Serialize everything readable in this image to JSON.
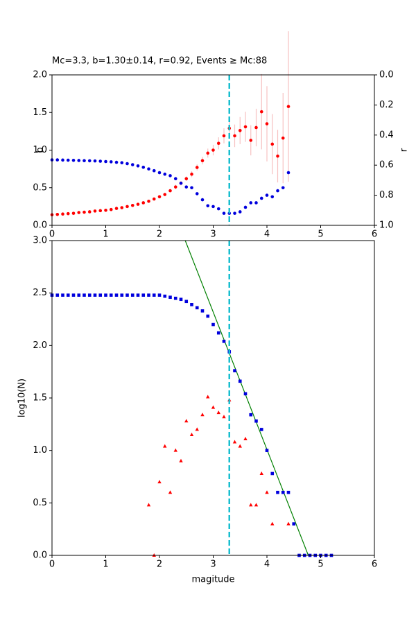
{
  "chart_data": [
    {
      "type": "scatter",
      "title": "Mc=3.3, b=1.30±0.14, r=0.92, Events ≥ Mc:88",
      "ylabel": "b",
      "y2label": "r",
      "xlim": [
        0,
        6
      ],
      "xticks": [
        0,
        1,
        2,
        3,
        4,
        5,
        6
      ],
      "ylim": [
        0,
        2
      ],
      "yticks": [
        {
          "value": 0,
          "label": "0.0"
        },
        {
          "value": 0.5,
          "label": "0.5"
        },
        {
          "value": 1,
          "label": "1.0"
        },
        {
          "value": 1.5,
          "label": "1.5"
        },
        {
          "value": 2,
          "label": "2.0"
        }
      ],
      "y2lim": [
        1,
        0
      ],
      "y2ticks": [
        {
          "value": 0,
          "label": "0.0"
        },
        {
          "value": 0.2,
          "label": "0.2"
        },
        {
          "value": 0.4,
          "label": "0.4"
        },
        {
          "value": 0.6,
          "label": "0.6"
        },
        {
          "value": 0.8,
          "label": "0.8"
        },
        {
          "value": 1,
          "label": "1.0"
        }
      ],
      "vline": {
        "value": 3.3,
        "color": "#17becf"
      },
      "x": [
        0,
        0.1,
        0.2,
        0.3,
        0.4,
        0.5,
        0.6,
        0.7,
        0.8,
        0.9,
        1.0,
        1.1,
        1.2,
        1.3,
        1.4,
        1.5,
        1.6,
        1.7,
        1.8,
        1.9,
        2.0,
        2.1,
        2.2,
        2.3,
        2.4,
        2.5,
        2.6,
        2.7,
        2.8,
        2.9,
        3.0,
        3.1,
        3.2,
        3.3,
        3.4,
        3.5,
        3.6,
        3.7,
        3.8,
        3.9,
        4.0,
        4.1,
        4.2,
        4.3,
        4.4
      ],
      "series": [
        {
          "color": "#ff0000",
          "marker": "circle",
          "error_color": "#f7c0c0",
          "values": [
            0.14,
            0.145,
            0.15,
            0.155,
            0.16,
            0.17,
            0.175,
            0.18,
            0.19,
            0.195,
            0.2,
            0.21,
            0.225,
            0.235,
            0.25,
            0.265,
            0.28,
            0.3,
            0.32,
            0.35,
            0.38,
            0.41,
            0.46,
            0.51,
            0.56,
            0.62,
            0.68,
            0.77,
            0.86,
            0.96,
            1.0,
            1.09,
            1.19,
            1.29,
            1.19,
            1.26,
            1.31,
            1.13,
            1.3,
            1.51,
            1.35,
            1.08,
            0.92,
            1.16,
            1.58
          ],
          "errors": [
            0.01,
            0.01,
            0.01,
            0.01,
            0.01,
            0.01,
            0.01,
            0.01,
            0.01,
            0.01,
            0.01,
            0.01,
            0.01,
            0.01,
            0.01,
            0.01,
            0.01,
            0.01,
            0.01,
            0.01,
            0.02,
            0.02,
            0.02,
            0.03,
            0.03,
            0.03,
            0.04,
            0.04,
            0.05,
            0.06,
            0.07,
            0.08,
            0.1,
            0.14,
            0.15,
            0.18,
            0.2,
            0.2,
            0.25,
            0.5,
            0.5,
            0.4,
            0.35,
            0.6,
            1.0
          ]
        },
        {
          "color": "#0000dd",
          "marker": "circle",
          "axis": "y2",
          "values": [
            0.565,
            0.565,
            0.566,
            0.567,
            0.568,
            0.569,
            0.57,
            0.571,
            0.572,
            0.574,
            0.576,
            0.578,
            0.581,
            0.584,
            0.59,
            0.597,
            0.605,
            0.614,
            0.625,
            0.637,
            0.65,
            0.66,
            0.67,
            0.69,
            0.72,
            0.745,
            0.75,
            0.79,
            0.83,
            0.87,
            0.875,
            0.89,
            0.92,
            0.92,
            0.92,
            0.91,
            0.88,
            0.85,
            0.85,
            0.82,
            0.8,
            0.81,
            0.77,
            0.75,
            0.65
          ]
        }
      ]
    },
    {
      "type": "scatter",
      "xlabel": "magitude",
      "ylabel": "log10(N)",
      "xlim": [
        0,
        6
      ],
      "xticks": [
        0,
        1,
        2,
        3,
        4,
        5,
        6
      ],
      "ylim": [
        0,
        3
      ],
      "yticks": [
        {
          "value": 0,
          "label": "0.0"
        },
        {
          "value": 0.5,
          "label": "0.5"
        },
        {
          "value": 1,
          "label": "1.0"
        },
        {
          "value": 1.5,
          "label": "1.5"
        },
        {
          "value": 2,
          "label": "2.0"
        },
        {
          "value": 2.5,
          "label": "2.5"
        },
        {
          "value": 3,
          "label": "3.0"
        }
      ],
      "vline": {
        "value": 3.3,
        "color": "#17becf"
      },
      "series": [
        {
          "color": "#008000",
          "marker": "line",
          "x": [
            2.48,
            4.77
          ],
          "values": [
            3,
            0
          ]
        },
        {
          "color": "#0000dd",
          "marker": "square",
          "x": [
            0,
            0.1,
            0.2,
            0.3,
            0.4,
            0.5,
            0.6,
            0.7,
            0.8,
            0.9,
            1.0,
            1.1,
            1.2,
            1.3,
            1.4,
            1.5,
            1.6,
            1.7,
            1.8,
            1.9,
            2.0,
            2.1,
            2.2,
            2.3,
            2.4,
            2.5,
            2.6,
            2.7,
            2.8,
            2.9,
            3.0,
            3.1,
            3.2,
            3.3,
            3.4,
            3.5,
            3.6,
            3.7,
            3.8,
            3.9,
            4.0,
            4.1,
            4.2,
            4.3,
            4.4,
            4.5,
            4.6,
            4.7,
            4.8,
            4.9,
            5.0,
            5.1,
            5.2
          ],
          "values": [
            2.48,
            2.48,
            2.48,
            2.48,
            2.48,
            2.48,
            2.48,
            2.48,
            2.48,
            2.48,
            2.48,
            2.48,
            2.48,
            2.48,
            2.48,
            2.48,
            2.48,
            2.48,
            2.48,
            2.48,
            2.48,
            2.47,
            2.46,
            2.45,
            2.44,
            2.42,
            2.39,
            2.36,
            2.33,
            2.28,
            2.2,
            2.12,
            2.04,
            1.94,
            1.76,
            1.66,
            1.54,
            1.34,
            1.28,
            1.2,
            1.0,
            0.78,
            0.6,
            0.6,
            0.6,
            0.3,
            0,
            0,
            0,
            0,
            0,
            0,
            0
          ]
        },
        {
          "color": "#ff0000",
          "marker": "triangle",
          "x": [
            1.8,
            1.9,
            2.0,
            2.1,
            2.2,
            2.3,
            2.4,
            2.5,
            2.6,
            2.7,
            2.8,
            2.9,
            3.0,
            3.1,
            3.2,
            3.3,
            3.4,
            3.5,
            3.6,
            3.7,
            3.8,
            3.9,
            4.0,
            4.1,
            4.4
          ],
          "values": [
            0.48,
            0,
            0.7,
            1.04,
            0.6,
            1.0,
            0.9,
            1.28,
            1.15,
            1.2,
            1.34,
            1.51,
            1.41,
            1.36,
            1.32,
            1.48,
            1.08,
            1.04,
            1.11,
            0.48,
            0.48,
            0.78,
            0.6,
            0.3,
            0.3
          ]
        }
      ]
    }
  ]
}
